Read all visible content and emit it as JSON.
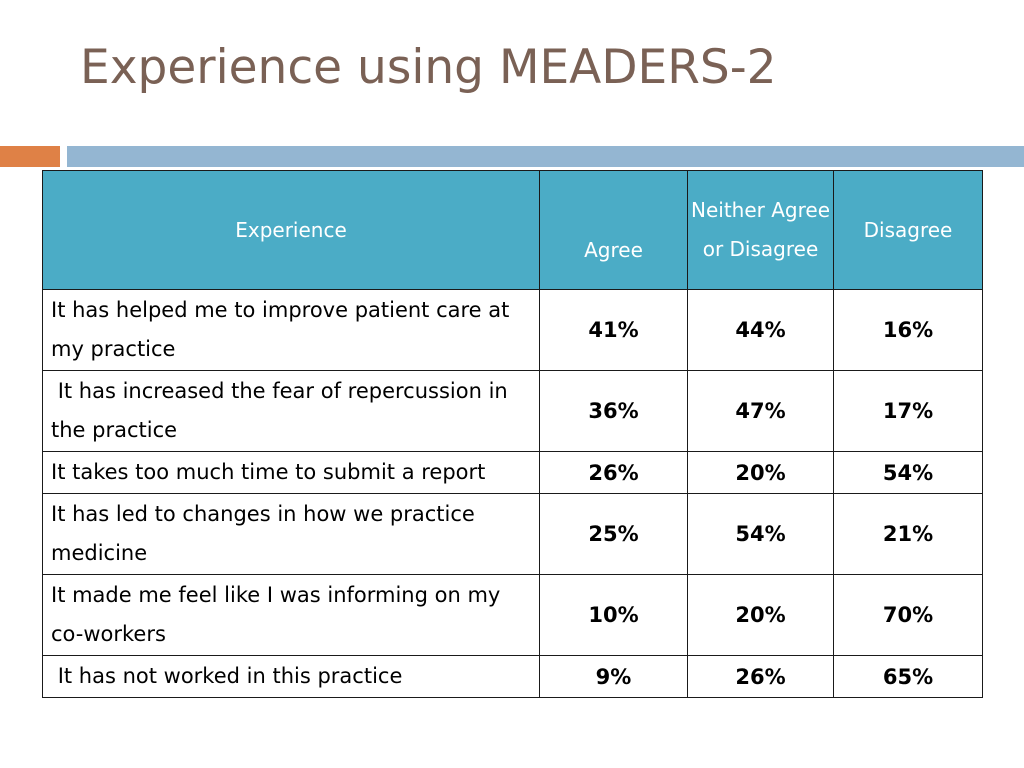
{
  "slide": {
    "title": "Experience using MEADERS-2"
  },
  "table": {
    "headers": {
      "experience": "Experience",
      "agree": "Agree",
      "neither": "Neither Agree or Disagree",
      "disagree": "Disagree"
    },
    "rows": [
      {
        "statement": "It has helped me to improve patient care at my practice",
        "agree": "41%",
        "neither": "44%",
        "disagree": "16%"
      },
      {
        "statement": " It has increased the fear of repercussion in the practice",
        "agree": "36%",
        "neither": "47%",
        "disagree": "17%"
      },
      {
        "statement": "It takes too much time to submit a report",
        "agree": "26%",
        "neither": "20%",
        "disagree": "54%"
      },
      {
        "statement": "It has led to changes in how we practice medicine",
        "agree": "25%",
        "neither": "54%",
        "disagree": "21%"
      },
      {
        "statement": "It made me feel like I was informing on my co-workers",
        "agree": "10%",
        "neither": "20%",
        "disagree": "70%"
      },
      {
        "statement": " It has not worked in this practice",
        "agree": "9%",
        "neither": "26%",
        "disagree": "65%"
      }
    ]
  },
  "colors": {
    "title": "#7a6155",
    "header_fill": "#4bacc6",
    "accent_orange": "#df8146",
    "accent_blue": "#94b6d2"
  }
}
